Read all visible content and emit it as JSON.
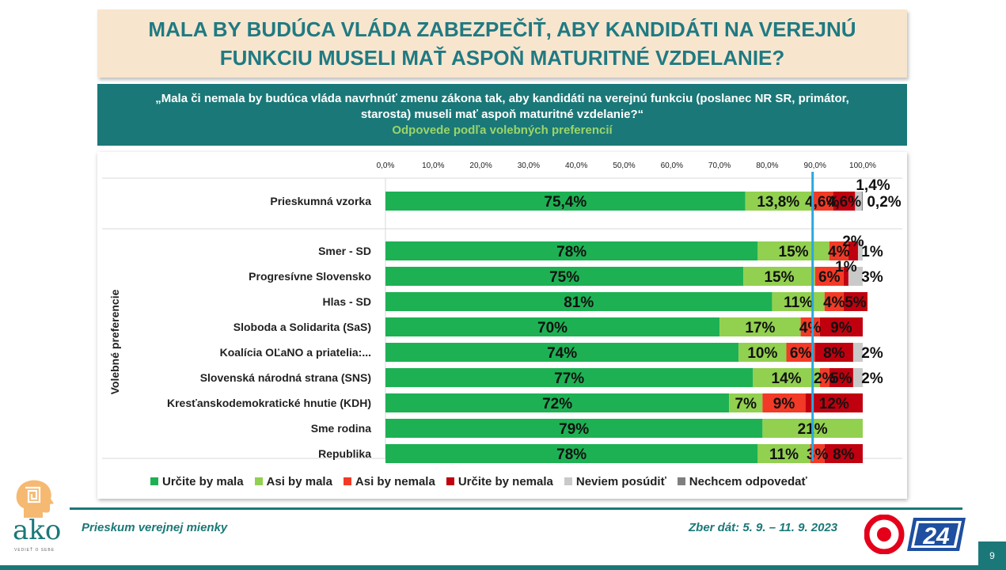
{
  "header": {
    "title_line1": "MALA BY BUDÚCA VLÁDA ZABEZPEČIŤ, ABY KANDIDÁTI NA VEREJNÚ",
    "title_line2": "FUNKCIU MUSELI MAŤ ASPOŇ MATURITNÉ VZDELANIE?"
  },
  "question": {
    "line1": "„Mala či nemala by budúca vláda navrhnúť zmenu zákona tak, aby kandidáti na verejnú funkciu (poslanec NR SR, primátor,",
    "line2": "starosta) museli mať aspoň maturitné vzdelanie?“",
    "subtitle": "Odpovede podľa volebných preferencií"
  },
  "chart_data": {
    "type": "bar",
    "orientation": "horizontal-stacked",
    "y_axis_title": "Volebné preferencie",
    "x_ticks": [
      "0,0%",
      "10,0%",
      "20,0%",
      "30,0%",
      "40,0%",
      "50,0%",
      "60,0%",
      "70,0%",
      "80,0%",
      "90,0%",
      "100,0%"
    ],
    "xlim": [
      0,
      100
    ],
    "reference_line_x": 89.5,
    "grid": false,
    "legend_position": "bottom",
    "series": [
      {
        "name": "Určite by mala",
        "color": "#1eb154"
      },
      {
        "name": "Asi by mala",
        "color": "#92d050"
      },
      {
        "name": "Asi by nemala",
        "color": "#f23a26"
      },
      {
        "name": "Určite by nemala",
        "color": "#c0000f"
      },
      {
        "name": "Neviem posúdiť",
        "color": "#c9c9c9"
      },
      {
        "name": "Nechcem odpovedať",
        "color": "#7f7f7f"
      }
    ],
    "rows": [
      {
        "label": "Prieskumná vzorka",
        "values": [
          75.4,
          13.8,
          4.6,
          4.6,
          1.4,
          0.2
        ],
        "labels": [
          "75,4%",
          "13,8%",
          "4,6%",
          "4,6%",
          "1,4%",
          "0,2%"
        ]
      },
      {
        "label": "Smer - SD",
        "values": [
          78,
          15,
          4,
          2,
          1,
          0
        ],
        "labels": [
          "78%",
          "15%",
          "4%",
          "2%",
          "1%",
          ""
        ]
      },
      {
        "label": "Progresívne Slovensko",
        "values": [
          75,
          15,
          6,
          1,
          3,
          0
        ],
        "labels": [
          "75%",
          "15%",
          "6%",
          "1%",
          "3%",
          ""
        ]
      },
      {
        "label": "Hlas - SD",
        "values": [
          81,
          11,
          4,
          5,
          0,
          0
        ],
        "labels": [
          "81%",
          "11%",
          "4%",
          "5%",
          "",
          ""
        ]
      },
      {
        "label": "Sloboda a Solidarita (SaS)",
        "values": [
          70,
          17,
          4,
          9,
          0,
          0
        ],
        "labels": [
          "70%",
          "17%",
          "4%",
          "9%",
          "",
          ""
        ]
      },
      {
        "label": "Koalícia OĽaNO a priatelia:...",
        "values": [
          74,
          10,
          6,
          8,
          2,
          0
        ],
        "labels": [
          "74%",
          "10%",
          "6%",
          "8%",
          "2%",
          ""
        ]
      },
      {
        "label": "Slovenská národná strana (SNS)",
        "values": [
          77,
          14,
          2,
          5,
          2,
          0
        ],
        "labels": [
          "77%",
          "14%",
          "2%",
          "5%",
          "2%",
          ""
        ]
      },
      {
        "label": "Kresťanskodemokratické hnutie (KDH)",
        "values": [
          72,
          7,
          9,
          12,
          0,
          0
        ],
        "labels": [
          "72%",
          "7%",
          "9%",
          "12%",
          "",
          ""
        ]
      },
      {
        "label": "Sme rodina",
        "values": [
          79,
          21,
          0,
          0,
          0,
          0
        ],
        "labels": [
          "79%",
          "21%",
          "",
          "",
          "",
          ""
        ]
      },
      {
        "label": "Republika",
        "values": [
          78,
          11,
          3,
          8,
          0,
          0
        ],
        "labels": [
          "78%",
          "11%",
          "3%",
          "8%",
          "",
          ""
        ]
      }
    ]
  },
  "footer": {
    "left": "Prieskum verejnej mienky",
    "right": "Zber dát: 5. 9. – 11. 9. 2023",
    "page": "9"
  },
  "logos": {
    "ako_word": "ako",
    "ako_tag": "VEDIEŤ O SEBE",
    "tv_number": "24"
  }
}
